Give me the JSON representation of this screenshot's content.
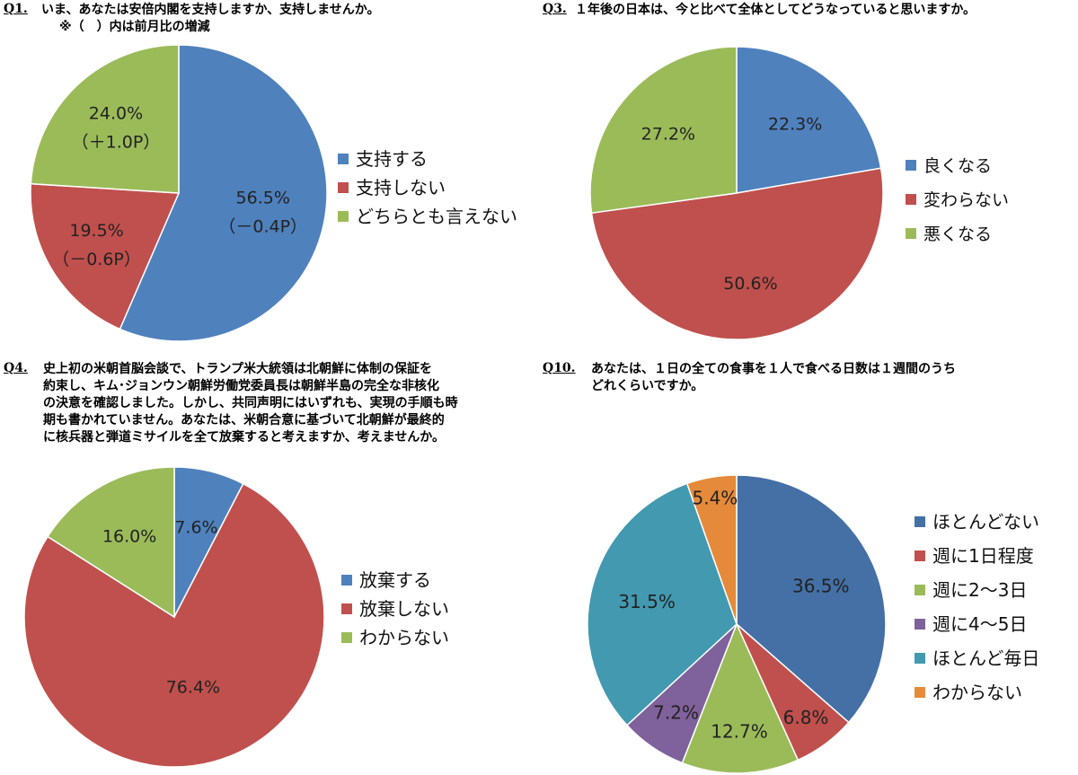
{
  "chart_data": [
    {
      "id": "q1",
      "type": "pie",
      "question_number": "Q1.",
      "title": "いま、あなたは安倍内閣を支持しますか、支持しませんか。",
      "subtitle": "※（　）内は前月比の増減",
      "categories": [
        "支持する",
        "支持しない",
        "どちらとも言えない"
      ],
      "values": [
        56.5,
        19.5,
        24.0
      ],
      "data_labels": [
        "56.5%",
        "19.5%",
        "24.0%"
      ],
      "change_labels": [
        "（－0.4P）",
        "（－0.6P）",
        "（＋1.0P）"
      ],
      "colors": [
        "#4F81BD",
        "#C0504D",
        "#9BBB59"
      ],
      "legend_position": "right"
    },
    {
      "id": "q3",
      "type": "pie",
      "question_number": "Q3.",
      "title": "１年後の日本は、今と比べて全体としてどうなっていると思いますか。",
      "categories": [
        "良くなる",
        "変わらない",
        "悪くなる"
      ],
      "values": [
        22.3,
        50.6,
        27.2
      ],
      "data_labels": [
        "22.3%",
        "50.6%",
        "27.2%"
      ],
      "colors": [
        "#4F81BD",
        "#C0504D",
        "#9BBB59"
      ],
      "legend_position": "right"
    },
    {
      "id": "q4",
      "type": "pie",
      "question_number": "Q4.",
      "title_lines": [
        "史上初の米朝首脳会談で、トランプ米大統領は北朝鮮に体制の保証を",
        "約束し、キム･ジョンウン朝鮮労働党委員長は朝鮮半島の完全な非核化",
        "の決意を確認しました。しかし、共同声明にはいずれも、実現の手順も時",
        "期も書かれていません。あなたは、米朝合意に基づいて北朝鮮が最終的",
        "に核兵器と弾道ミサイルを全て放棄すると考えますか、考えませんか。"
      ],
      "categories": [
        "放棄する",
        "放棄しない",
        "わからない"
      ],
      "values": [
        7.6,
        76.4,
        16.0
      ],
      "data_labels": [
        "7.6%",
        "76.4%",
        "16.0%"
      ],
      "colors": [
        "#4F81BD",
        "#C0504D",
        "#9BBB59"
      ],
      "legend_position": "right"
    },
    {
      "id": "q10",
      "type": "pie",
      "question_number": "Q10.",
      "title_lines": [
        "あなたは、１日の全ての食事を１人で食べる日数は１週間のうち",
        "どれくらいですか。"
      ],
      "categories": [
        "ほとんどない",
        "週に1日程度",
        "週に2～3日",
        "週に4～5日",
        "ほとんど毎日",
        "わからない"
      ],
      "values": [
        36.5,
        6.8,
        12.7,
        7.2,
        31.5,
        5.4
      ],
      "data_labels": [
        "36.5%",
        "6.8%",
        "12.7%",
        "7.2%",
        "31.5%",
        "5.4%"
      ],
      "colors": [
        "#4470A5",
        "#C0504D",
        "#9BBB59",
        "#7F619C",
        "#4299B0",
        "#E58A3A"
      ],
      "legend_position": "right"
    }
  ]
}
